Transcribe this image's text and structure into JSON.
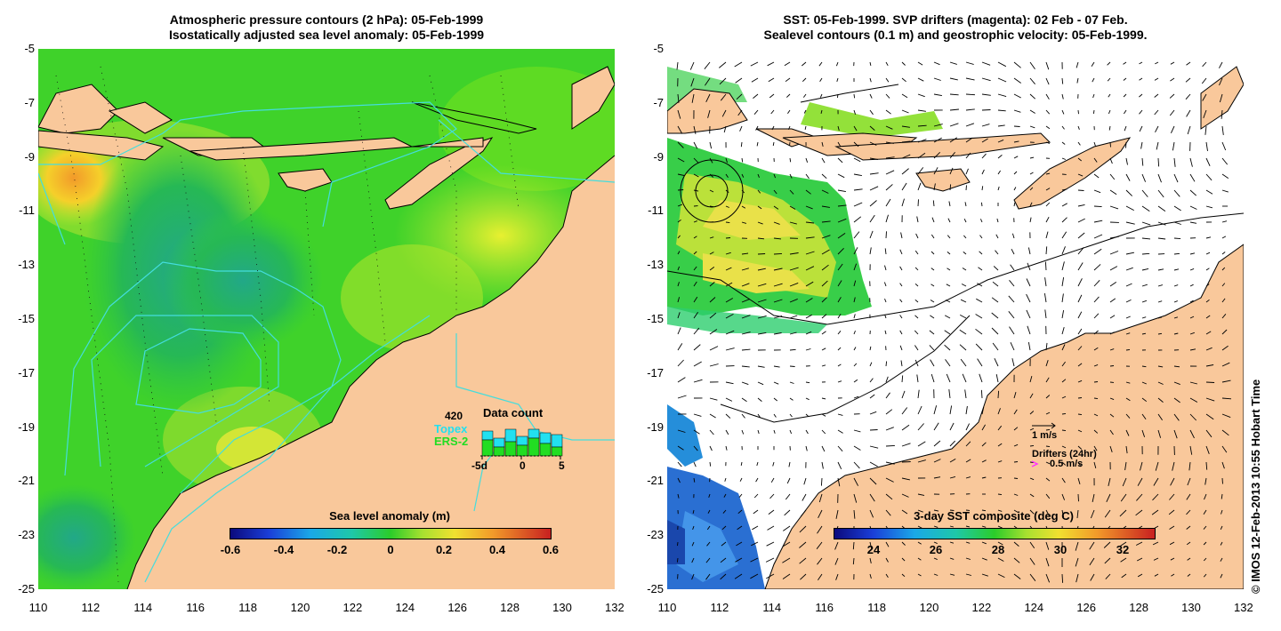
{
  "left_panel": {
    "title_line1": "Atmospheric pressure contours (2 hPa): 05-Feb-1999",
    "title_line2": "Isostatically adjusted sea level anomaly: 05-Feb-1999",
    "colorbar_title": "Sea level anomaly (m)",
    "colorbar_ticks": [
      "-0.6",
      "-0.4",
      "-0.2",
      "0",
      "0.2",
      "0.4",
      "0.6"
    ],
    "inset": {
      "count": "420",
      "title": "Data count",
      "legend_topex": "Topex",
      "legend_ers2": "ERS-2",
      "xticks": [
        "-5d",
        "0",
        "5"
      ],
      "topex_color": "#22e0f0",
      "ers2_color": "#22dd22"
    }
  },
  "right_panel": {
    "title_line1": "SST: 05-Feb-1999. SVP drifters (magenta): 02 Feb - 07 Feb.",
    "title_line2": "Sealevel contours (0.1 m) and geostrophic velocity: 05-Feb-1999.",
    "colorbar_title": "3-day SST composite (deg C)",
    "colorbar_ticks": [
      "24",
      "26",
      "28",
      "30",
      "32"
    ],
    "vector_scale_label": "1 m/s",
    "drifters_label": "Drifters (24hr)",
    "drifter_scale_label": "0.5 m/s",
    "drifter_color": "#ff33ff"
  },
  "axes": {
    "yticks": [
      "-5",
      "-7",
      "-9",
      "-11",
      "-13",
      "-15",
      "-17",
      "-19",
      "-21",
      "-23",
      "-25"
    ],
    "xticks": [
      "110",
      "112",
      "114",
      "116",
      "118",
      "120",
      "122",
      "124",
      "126",
      "128",
      "130",
      "132"
    ]
  },
  "credit": "© IMOS 12-Feb-2013 10:55 Hobart Time",
  "colors": {
    "land": "#f9c89b",
    "ocean_green": "#33cc22",
    "contour_cyan": "#44dddd"
  }
}
